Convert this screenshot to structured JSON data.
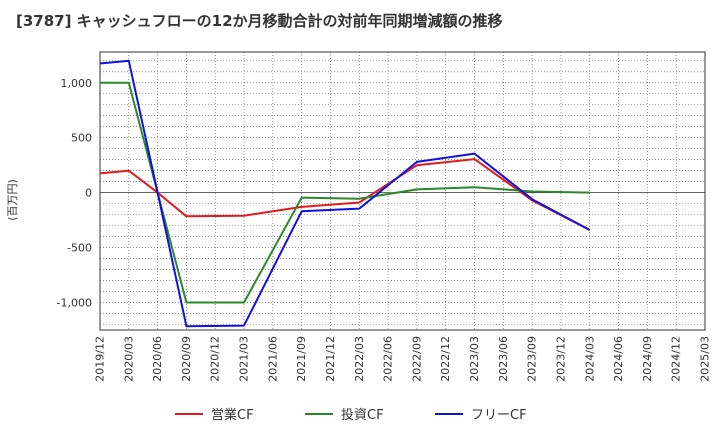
{
  "chart_data": {
    "type": "line",
    "title": "[3787]  キャッシュフローの12か月移動合計の対前年同期増減額の推移",
    "ylabel": "(百万円)",
    "ylim": [
      -1250,
      1280
    ],
    "yticks": [
      1000,
      500,
      0,
      -500,
      -1000
    ],
    "ytick_labels": [
      "1,000",
      "500",
      "0",
      "-500",
      "-1,000"
    ],
    "x": [
      "2019/12",
      "2020/03",
      "2020/06",
      "2020/09",
      "2020/12",
      "2021/03",
      "2021/06",
      "2021/09",
      "2021/12",
      "2022/03",
      "2022/06",
      "2022/09",
      "2022/12",
      "2023/03",
      "2023/06",
      "2023/09",
      "2023/12",
      "2024/03",
      "2024/06",
      "2024/09",
      "2024/12",
      "2025/03"
    ],
    "grid": true,
    "legend_position": "bottom",
    "series": [
      {
        "name": "営業CF",
        "color": "#e31a1c",
        "values": [
          175,
          200,
          0,
          -215,
          null,
          -210,
          null,
          -130,
          null,
          -90,
          null,
          250,
          null,
          305,
          null,
          -70,
          null,
          -340,
          null,
          null,
          null,
          null
        ]
      },
      {
        "name": "投資CF",
        "color": "#2a8a2a",
        "values": [
          1000,
          1000,
          0,
          -1000,
          null,
          -1000,
          null,
          -45,
          null,
          -55,
          null,
          30,
          null,
          50,
          null,
          10,
          null,
          0,
          null,
          null,
          null,
          null
        ]
      },
      {
        "name": "フリーCF",
        "color": "#1010e0",
        "values": [
          1175,
          1200,
          0,
          -1215,
          null,
          -1210,
          null,
          -170,
          null,
          -145,
          null,
          280,
          null,
          355,
          null,
          -60,
          null,
          -340,
          null,
          null,
          null,
          null
        ]
      }
    ]
  }
}
